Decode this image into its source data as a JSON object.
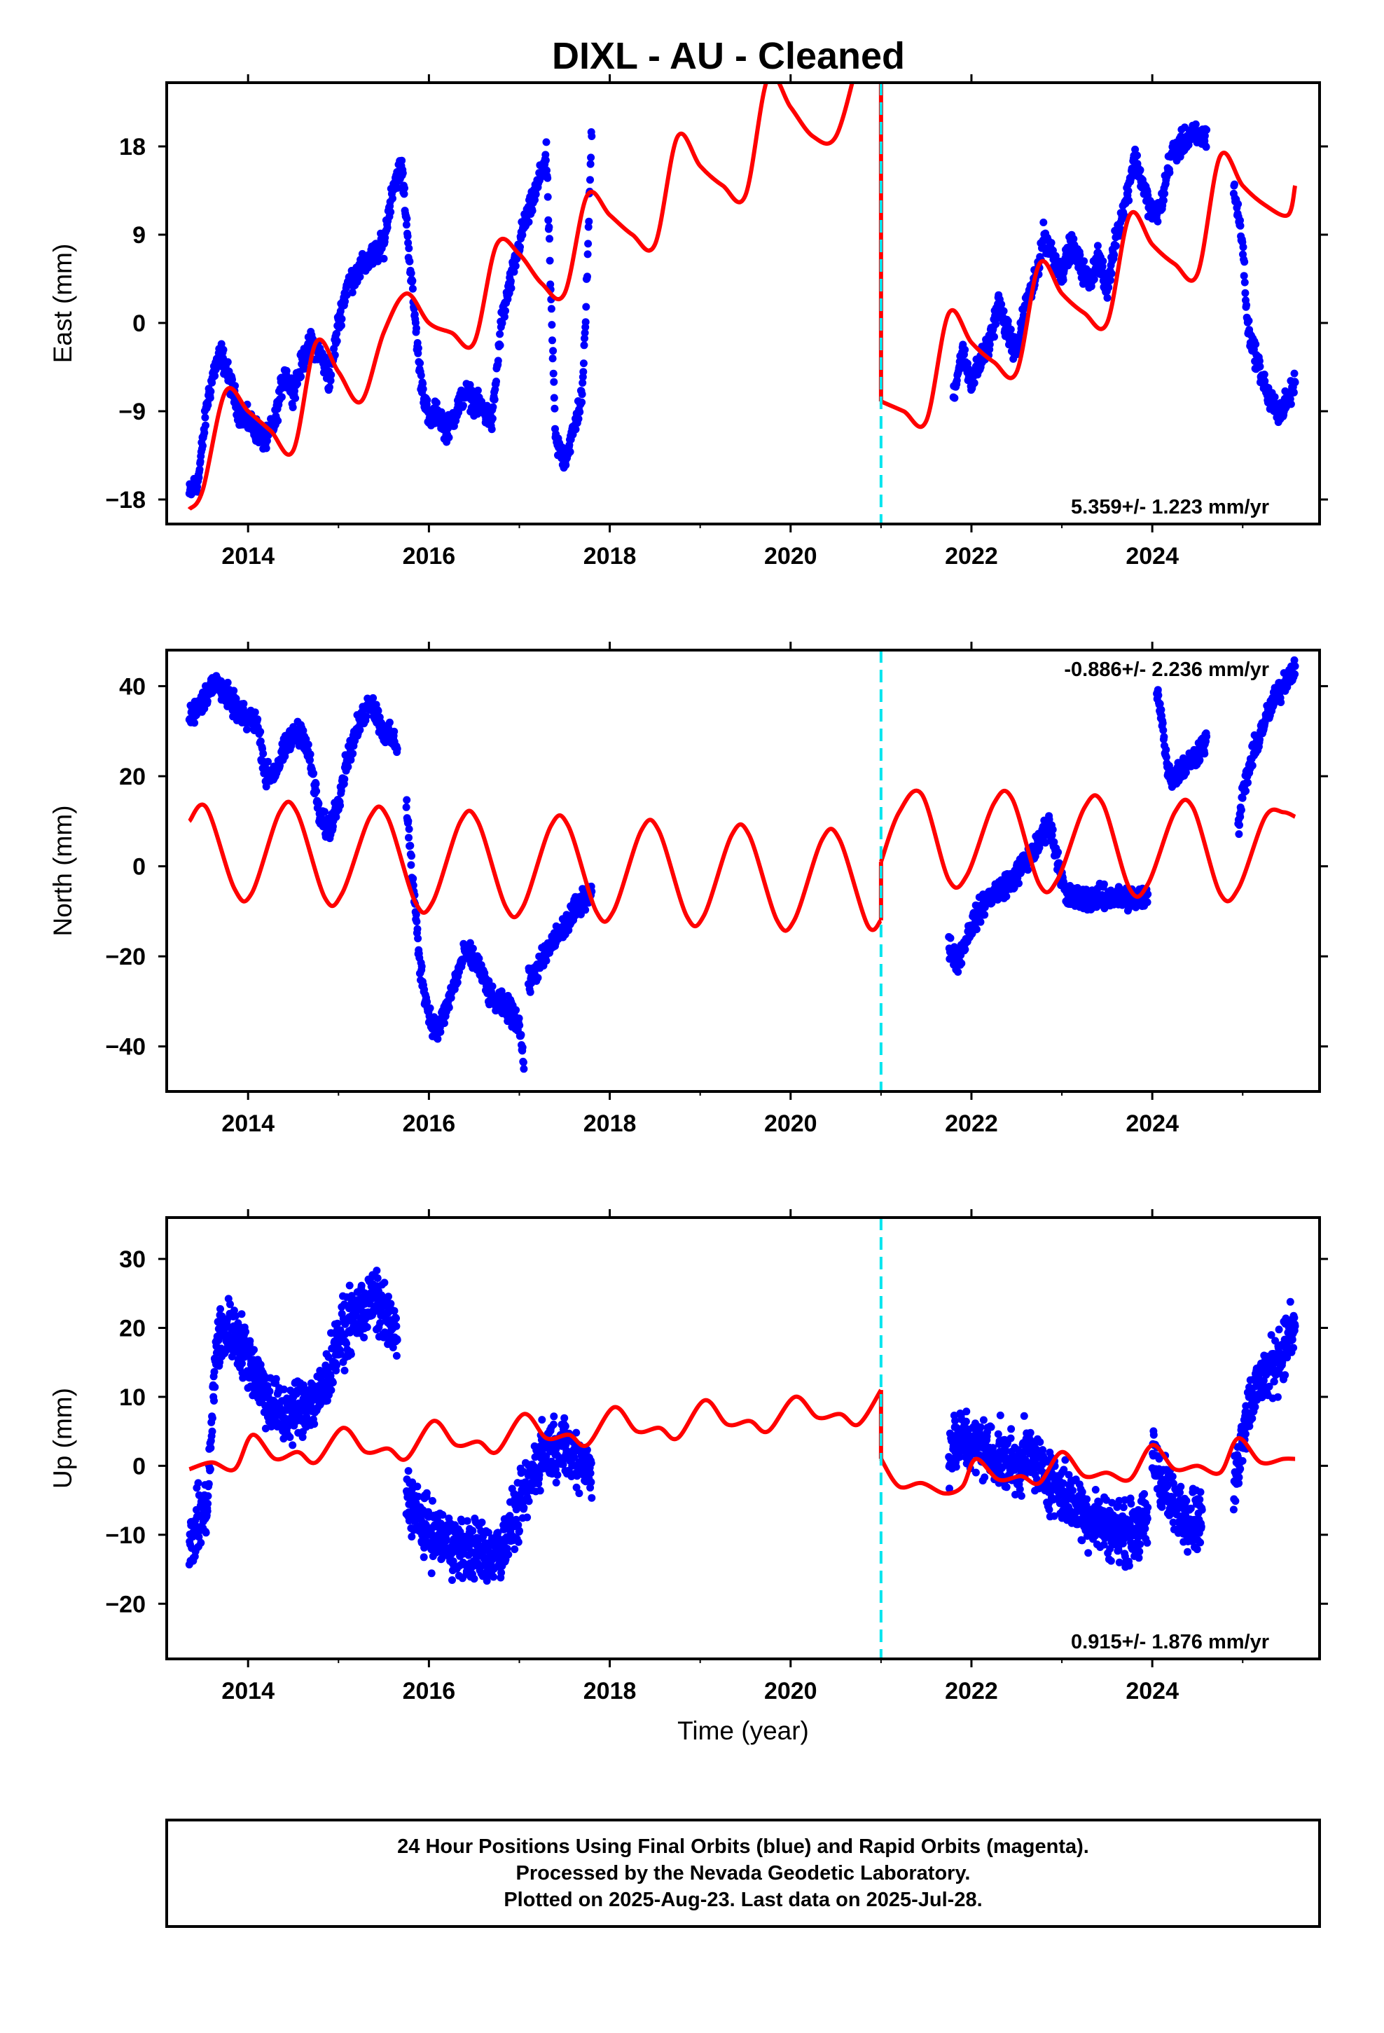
{
  "title": "DIXL  - AU - Cleaned",
  "colors": {
    "data": "#0000ff",
    "model": "#ff0000",
    "offset": "#00e5ee",
    "frame": "#000000"
  },
  "chart_data": [
    {
      "type": "scatter",
      "ylabel": "East (mm)",
      "rate_text": "5.359+/- 1.223 mm/yr",
      "rate_position": "bottom-right",
      "xlim": [
        2013.1,
        2025.85
      ],
      "ylim": [
        -20.5,
        24.5
      ],
      "yticks": [
        -18,
        -9,
        0,
        9,
        18
      ],
      "xticks": [
        2014,
        2016,
        2018,
        2020,
        2022,
        2024
      ],
      "offset_epoch": 2021.0,
      "data_segments": [
        {
          "x": [
            2013.35,
            2013.45,
            2013.55,
            2013.62,
            2013.7,
            2013.8,
            2013.9,
            2014.0,
            2014.1,
            2014.2,
            2014.3,
            2014.4,
            2014.5,
            2014.6,
            2014.7,
            2014.8,
            2014.9,
            2015.0,
            2015.1,
            2015.2,
            2015.3,
            2015.4,
            2015.5,
            2015.6,
            2015.7,
            2015.8,
            2015.9,
            2016.0,
            2016.1,
            2016.2,
            2016.3,
            2016.4,
            2016.5,
            2016.6,
            2016.7,
            2016.8,
            2016.9,
            2017.0,
            2017.05,
            2017.1
          ],
          "y": [
            -17.5,
            -16,
            -8,
            -5,
            -3,
            -6,
            -9,
            -10,
            -11,
            -12,
            -10,
            -5,
            -7,
            -4,
            -2,
            -3,
            -6,
            0,
            4,
            5,
            6,
            7,
            8,
            14,
            16,
            5,
            -5,
            -10,
            -9,
            -11,
            -9,
            -7,
            -8,
            -9,
            -10,
            0,
            4,
            8,
            10,
            11
          ]
        },
        {
          "x": [
            2017.1,
            2017.2,
            2017.3,
            2017.4,
            2017.5,
            2017.6,
            2017.7,
            2017.75,
            2017.8
          ],
          "y": [
            11,
            14,
            17,
            -12,
            -14,
            -11,
            -7,
            5,
            20
          ]
        },
        {
          "x": [
            2021.8,
            2021.9,
            2022.0,
            2022.1,
            2022.2,
            2022.3,
            2022.4,
            2022.5,
            2022.6,
            2022.7,
            2022.8,
            2022.9,
            2023.0,
            2023.1,
            2023.2,
            2023.3,
            2023.4,
            2023.5,
            2023.6,
            2023.7,
            2023.8,
            2023.9,
            2024.0,
            2024.1,
            2024.2,
            2024.3,
            2024.4,
            2024.5,
            2024.6
          ],
          "y": [
            -7,
            -3,
            -6,
            -4,
            -2,
            2,
            -1,
            -3,
            2,
            4,
            9,
            7,
            5,
            8,
            6,
            4,
            7,
            3,
            9,
            12,
            17,
            14,
            11,
            12,
            17,
            18,
            19,
            19,
            19
          ]
        },
        {
          "x": [
            2024.9,
            2025.0,
            2025.05,
            2025.1,
            2025.2,
            2025.3,
            2025.4,
            2025.5,
            2025.58
          ],
          "y": [
            14,
            8,
            0,
            -2,
            -5,
            -8,
            -9,
            -8,
            -6
          ]
        }
      ],
      "model_segments": [
        {
          "x": [
            2013.35,
            2013.5,
            2013.75,
            2014.0,
            2014.25,
            2014.5,
            2014.75,
            2015.0,
            2015.25,
            2015.5,
            2015.75,
            2016.0,
            2016.25,
            2016.5,
            2016.75,
            2017.0,
            2017.25,
            2017.5,
            2017.75,
            2018.0,
            2018.25,
            2018.5,
            2018.75,
            2019.0,
            2019.25,
            2019.5,
            2019.75,
            2020.0,
            2020.25,
            2020.5,
            2020.75
          ],
          "y": [
            -19,
            -17,
            -7,
            -9,
            -11,
            -13,
            -2,
            -5,
            -8,
            -1,
            3,
            0,
            -1,
            -2,
            8,
            7,
            4,
            3,
            13,
            11,
            9,
            8,
            19,
            16,
            14,
            13,
            25,
            22,
            19,
            19,
            27
          ]
        },
        {
          "x": [
            2021.0,
            2021.25,
            2021.5,
            2021.75,
            2022.0,
            2022.25,
            2022.5,
            2022.75,
            2023.0,
            2023.25,
            2023.5,
            2023.75,
            2024.0,
            2024.25,
            2024.5,
            2024.75,
            2025.0,
            2025.25,
            2025.5,
            2025.58
          ],
          "y": [
            -8,
            -9,
            -10,
            1,
            -2,
            -4,
            -5,
            6,
            3,
            1,
            0,
            11,
            8,
            6,
            5,
            17,
            14,
            12,
            11,
            14
          ]
        }
      ]
    },
    {
      "type": "scatter",
      "ylabel": "North (mm)",
      "rate_text": "-0.886+/- 2.236 mm/yr",
      "rate_position": "top-right",
      "xlim": [
        2013.1,
        2025.85
      ],
      "ylim": [
        -50,
        48
      ],
      "yticks": [
        -40,
        -20,
        0,
        20,
        40
      ],
      "xticks": [
        2014,
        2016,
        2018,
        2020,
        2022,
        2024
      ],
      "offset_epoch": 2021.0,
      "data_segments": [
        {
          "x": [
            2013.35,
            2013.5,
            2013.65,
            2013.8,
            2013.95,
            2014.1,
            2014.2,
            2014.3,
            2014.45,
            2014.6,
            2014.7,
            2014.8,
            2014.9,
            2015.0,
            2015.1,
            2015.2,
            2015.35,
            2015.5,
            2015.6,
            2015.65
          ],
          "y": [
            33,
            37,
            41,
            37,
            33,
            32,
            20,
            21,
            28,
            30,
            22,
            10,
            8,
            15,
            24,
            30,
            37,
            30,
            28,
            27
          ]
        },
        {
          "x": [
            2015.75,
            2015.8,
            2015.85,
            2015.9,
            2016.0,
            2016.1,
            2016.25,
            2016.4,
            2016.55,
            2016.7,
            2016.85,
            2017.0,
            2017.05
          ],
          "y": [
            14,
            2,
            -10,
            -22,
            -33,
            -37,
            -28,
            -19,
            -22,
            -30,
            -31,
            -35,
            -44
          ]
        },
        {
          "x": [
            2017.1,
            2017.25,
            2017.4,
            2017.55,
            2017.7,
            2017.8
          ],
          "y": [
            -26,
            -21,
            -16,
            -12,
            -7,
            -6
          ]
        },
        {
          "x": [
            2021.75,
            2021.85,
            2022.0,
            2022.15,
            2022.3,
            2022.45,
            2022.6,
            2022.75,
            2022.85,
            2022.95,
            2023.05,
            2023.2,
            2023.4,
            2023.6,
            2023.8,
            2023.95
          ],
          "y": [
            -18,
            -21,
            -13,
            -8,
            -5,
            -3,
            1,
            5,
            10,
            2,
            -7,
            -7,
            -7,
            -7,
            -7,
            -7
          ]
        },
        {
          "x": [
            2024.05,
            2024.1,
            2024.15,
            2024.2,
            2024.3,
            2024.45,
            2024.6
          ],
          "y": [
            40,
            34,
            24,
            20,
            21,
            24,
            28
          ]
        },
        {
          "x": [
            2024.95,
            2025.0,
            2025.1,
            2025.2,
            2025.35,
            2025.5,
            2025.58
          ],
          "y": [
            8,
            16,
            24,
            30,
            37,
            42,
            45
          ]
        }
      ],
      "model_segments": [
        {
          "x": [
            2013.35,
            2013.54,
            2013.85,
            2014.04,
            2014.35,
            2014.54,
            2014.85,
            2015.04,
            2015.35,
            2015.54,
            2015.85,
            2016.04,
            2016.35,
            2016.54,
            2016.85,
            2017.04,
            2017.35,
            2017.54,
            2017.85,
            2018.04,
            2018.35,
            2018.54,
            2018.85,
            2019.04,
            2019.35,
            2019.54,
            2019.85,
            2020.04,
            2020.35,
            2020.54,
            2020.85,
            2021.0
          ],
          "y": [
            10,
            13,
            -5,
            -6,
            12,
            12,
            -7,
            -6,
            11,
            11,
            -8,
            -8,
            10,
            10,
            -9,
            -9,
            9,
            9,
            -10,
            -10,
            8,
            8,
            -11,
            -11,
            7,
            7,
            -12,
            -12,
            6,
            6,
            -13,
            -12
          ]
        },
        {
          "x": [
            2021.0,
            2021.2,
            2021.45,
            2021.75,
            2021.95,
            2022.25,
            2022.45,
            2022.75,
            2022.95,
            2023.25,
            2023.45,
            2023.75,
            2023.95,
            2024.25,
            2024.45,
            2024.75,
            2024.95,
            2025.25,
            2025.45,
            2025.58
          ],
          "y": [
            1,
            12,
            16,
            -3,
            -2,
            14,
            15,
            -4,
            -3,
            13,
            14,
            -5,
            -4,
            12,
            13,
            -6,
            -5,
            11,
            12,
            11
          ]
        }
      ]
    },
    {
      "type": "scatter",
      "ylabel": "Up (mm)",
      "xlabel": "Time (year)",
      "rate_text": "0.915+/- 1.876 mm/yr",
      "rate_position": "bottom-right",
      "xlim": [
        2013.1,
        2025.85
      ],
      "ylim": [
        -28,
        36
      ],
      "yticks": [
        -20,
        -10,
        0,
        10,
        20,
        30
      ],
      "xticks": [
        2014,
        2016,
        2018,
        2020,
        2022,
        2024
      ],
      "offset_epoch": 2021.0,
      "data_segments": [
        {
          "x": [
            2013.35,
            2013.45,
            2013.55,
            2013.65,
            2013.8,
            2014.0,
            2014.2,
            2014.4,
            2014.6,
            2014.8,
            2015.0,
            2015.2,
            2015.4,
            2015.55,
            2015.65
          ],
          "y": [
            -12,
            -8,
            -6,
            18,
            20,
            16,
            10,
            7,
            9,
            10,
            18,
            22,
            24,
            21,
            18
          ]
        },
        {
          "x": [
            2015.75,
            2015.9,
            2016.05,
            2016.2,
            2016.35,
            2016.5,
            2016.65,
            2016.8,
            2016.95,
            2017.1,
            2017.25,
            2017.4,
            2017.55,
            2017.7,
            2017.8
          ],
          "y": [
            -4,
            -8,
            -10,
            -11,
            -12,
            -12,
            -13,
            -12,
            -8,
            -3,
            2,
            3,
            2,
            1,
            -1
          ]
        },
        {
          "x": [
            2021.75,
            2021.9,
            2022.05,
            2022.2,
            2022.35,
            2022.5,
            2022.65,
            2022.8,
            2022.95,
            2023.1,
            2023.25,
            2023.4,
            2023.55,
            2023.7,
            2023.85,
            2023.95
          ],
          "y": [
            2,
            4,
            3,
            2,
            1,
            0,
            2,
            -1,
            -3,
            -5,
            -7,
            -8,
            -9,
            -10,
            -9,
            -8
          ]
        },
        {
          "x": [
            2024.0,
            2024.1,
            2024.25,
            2024.4,
            2024.55
          ],
          "y": [
            2,
            -2,
            -6,
            -7,
            -8
          ]
        },
        {
          "x": [
            2024.9,
            2025.0,
            2025.1,
            2025.2,
            2025.35,
            2025.5,
            2025.58
          ],
          "y": [
            -4,
            5,
            10,
            12,
            15,
            18,
            20
          ]
        }
      ],
      "model_segments": [
        {
          "x": [
            2013.35,
            2013.6,
            2013.85,
            2014.05,
            2014.3,
            2014.55,
            2014.75,
            2015.05,
            2015.3,
            2015.55,
            2015.75,
            2016.05,
            2016.3,
            2016.55,
            2016.75,
            2017.05,
            2017.3,
            2017.55,
            2017.75,
            2018.05,
            2018.3,
            2018.55,
            2018.75,
            2019.05,
            2019.3,
            2019.55,
            2019.75,
            2020.05,
            2020.3,
            2020.55,
            2020.75,
            2021.0
          ],
          "y": [
            -0.5,
            0.5,
            -0.5,
            4.5,
            1,
            2,
            0.5,
            5.5,
            2,
            2.5,
            1,
            6.5,
            3,
            3.5,
            2,
            7.5,
            4,
            4.5,
            3,
            8.5,
            5,
            5.5,
            4,
            9.5,
            6,
            6.5,
            5,
            10,
            7,
            7.5,
            6,
            11
          ]
        },
        {
          "x": [
            2021.0,
            2021.2,
            2021.45,
            2021.7,
            2021.9,
            2022.05,
            2022.3,
            2022.55,
            2022.75,
            2023.0,
            2023.25,
            2023.5,
            2023.75,
            2024.0,
            2024.25,
            2024.5,
            2024.75,
            2024.95,
            2025.2,
            2025.45,
            2025.58
          ],
          "y": [
            1,
            -3,
            -2.5,
            -4,
            -3,
            1,
            -2,
            -1.5,
            -2.5,
            2,
            -1.5,
            -1,
            -2,
            3,
            -0.5,
            0,
            -1,
            4,
            0.5,
            1,
            1
          ]
        }
      ]
    }
  ],
  "footer": {
    "line1": "24 Hour Positions Using Final Orbits (blue) and Rapid Orbits (magenta).",
    "line2": "Processed by the Nevada Geodetic Laboratory.",
    "line3": "Plotted on 2025-Aug-23. Last data on 2025-Jul-28."
  }
}
